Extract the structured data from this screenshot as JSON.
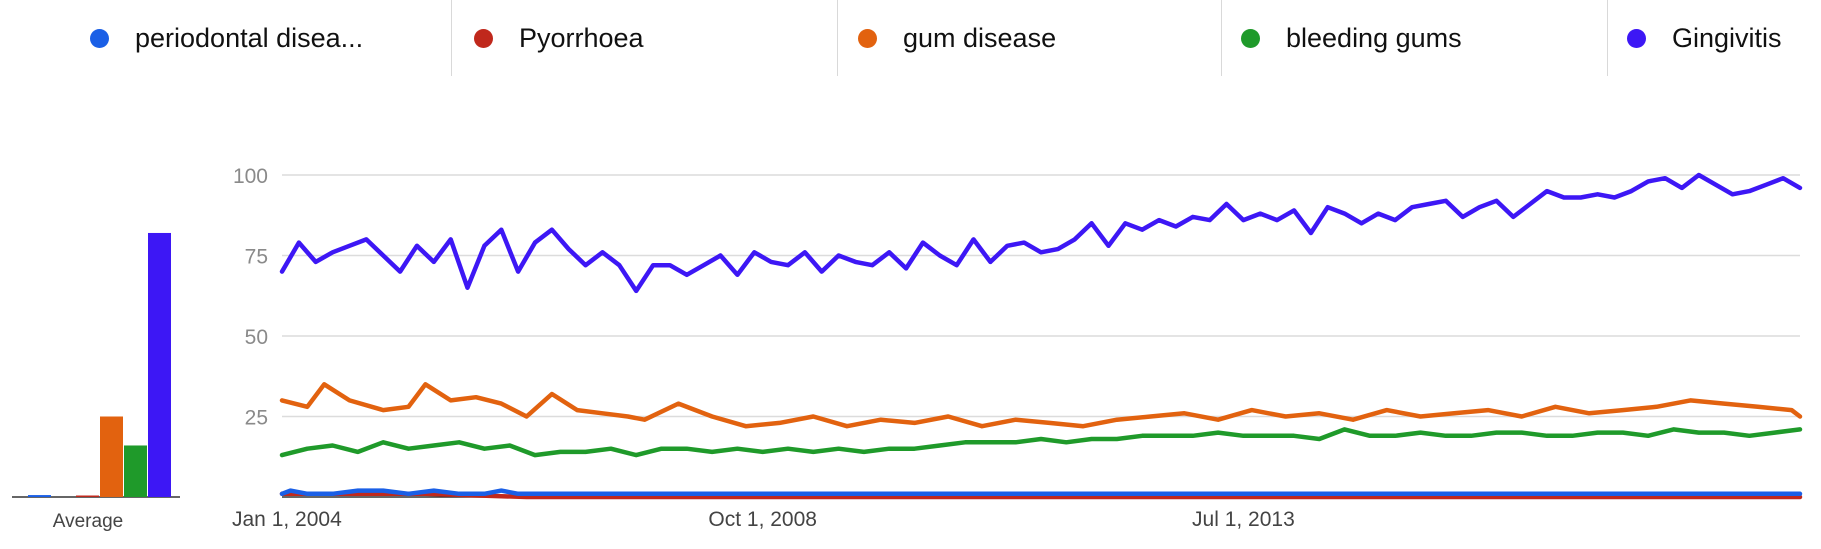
{
  "chart_data": {
    "type": "line",
    "series": [
      {
        "name": "periodontal disea...",
        "color": "#1a5fe6",
        "avg": 0.6,
        "x": [
          "2004-01",
          "2004-02",
          "2004-04",
          "2004-07",
          "2004-10",
          "2005-01",
          "2005-04",
          "2005-07",
          "2005-10",
          "2006-01",
          "2006-03",
          "2006-05",
          "2006-08",
          "2008-01",
          "2010-01",
          "2013-01",
          "2015-01",
          "2017-01",
          "2019-01"
        ],
        "y": [
          1,
          2,
          1,
          1,
          2,
          2,
          1,
          2,
          1,
          1,
          2,
          1,
          1,
          1,
          1,
          1,
          1,
          1,
          1
        ]
      },
      {
        "name": "Pyorrhoea",
        "color": "#c0281c",
        "avg": 0.4,
        "x": [
          "2004-01",
          "2005-06",
          "2006-06",
          "2008-01",
          "2011-01",
          "2014-01",
          "2019-01"
        ],
        "y": [
          1,
          1,
          0,
          0,
          0,
          0,
          0
        ]
      },
      {
        "name": "gum disease",
        "color": "#e2620f",
        "avg": 25,
        "x": [
          "2004-01",
          "2004-04",
          "2004-06",
          "2004-09",
          "2005-01",
          "2005-04",
          "2005-06",
          "2005-09",
          "2005-12",
          "2006-03",
          "2006-06",
          "2006-09",
          "2006-12",
          "2007-03",
          "2007-06",
          "2007-08",
          "2007-12",
          "2008-04",
          "2008-08",
          "2008-12",
          "2009-04",
          "2009-08",
          "2009-12",
          "2010-04",
          "2010-08",
          "2010-12",
          "2011-04",
          "2011-08",
          "2011-12",
          "2012-04",
          "2012-08",
          "2012-12",
          "2013-04",
          "2013-08",
          "2013-12",
          "2014-04",
          "2014-08",
          "2014-12",
          "2015-04",
          "2015-08",
          "2015-12",
          "2016-04",
          "2016-08",
          "2016-12",
          "2017-04",
          "2017-08",
          "2017-12",
          "2018-04",
          "2018-08",
          "2018-12",
          "2019-01"
        ],
        "y": [
          30,
          28,
          35,
          30,
          27,
          28,
          35,
          30,
          31,
          29,
          25,
          32,
          27,
          26,
          25,
          24,
          29,
          25,
          22,
          23,
          25,
          22,
          24,
          23,
          25,
          22,
          24,
          23,
          22,
          24,
          25,
          26,
          24,
          27,
          25,
          26,
          24,
          27,
          25,
          26,
          27,
          25,
          28,
          26,
          27,
          28,
          30,
          29,
          28,
          27,
          25
        ]
      },
      {
        "name": "bleeding gums",
        "color": "#1f9a2a",
        "avg": 16,
        "x": [
          "2004-01",
          "2004-04",
          "2004-07",
          "2004-10",
          "2005-01",
          "2005-04",
          "2005-07",
          "2005-10",
          "2006-01",
          "2006-04",
          "2006-07",
          "2006-10",
          "2007-01",
          "2007-04",
          "2007-07",
          "2007-10",
          "2008-01",
          "2008-04",
          "2008-07",
          "2008-10",
          "2009-01",
          "2009-04",
          "2009-07",
          "2009-10",
          "2010-01",
          "2010-04",
          "2010-07",
          "2010-10",
          "2011-01",
          "2011-04",
          "2011-07",
          "2011-10",
          "2012-01",
          "2012-04",
          "2012-07",
          "2012-10",
          "2013-01",
          "2013-04",
          "2013-07",
          "2013-10",
          "2014-01",
          "2014-04",
          "2014-07",
          "2014-10",
          "2015-01",
          "2015-04",
          "2015-07",
          "2015-10",
          "2016-01",
          "2016-04",
          "2016-07",
          "2016-10",
          "2017-01",
          "2017-04",
          "2017-07",
          "2017-10",
          "2018-01",
          "2018-04",
          "2018-07",
          "2018-10",
          "2019-01"
        ],
        "y": [
          13,
          15,
          16,
          14,
          17,
          15,
          16,
          17,
          15,
          16,
          13,
          14,
          14,
          15,
          13,
          15,
          15,
          14,
          15,
          14,
          15,
          14,
          15,
          14,
          15,
          15,
          16,
          17,
          17,
          17,
          18,
          17,
          18,
          18,
          19,
          19,
          19,
          20,
          19,
          19,
          19,
          18,
          21,
          19,
          19,
          20,
          19,
          19,
          20,
          20,
          19,
          19,
          20,
          20,
          19,
          21,
          20,
          20,
          19,
          20,
          21
        ]
      },
      {
        "name": "Gingivitis",
        "color": "#3d17f5",
        "avg": 82,
        "x": [
          "2004-01",
          "2004-03",
          "2004-05",
          "2004-07",
          "2004-09",
          "2004-11",
          "2005-01",
          "2005-03",
          "2005-05",
          "2005-07",
          "2005-09",
          "2005-11",
          "2006-01",
          "2006-03",
          "2006-05",
          "2006-07",
          "2006-09",
          "2006-11",
          "2007-01",
          "2007-03",
          "2007-05",
          "2007-07",
          "2007-09",
          "2007-11",
          "2008-01",
          "2008-03",
          "2008-05",
          "2008-07",
          "2008-09",
          "2008-11",
          "2009-01",
          "2009-03",
          "2009-05",
          "2009-07",
          "2009-09",
          "2009-11",
          "2010-01",
          "2010-03",
          "2010-05",
          "2010-07",
          "2010-09",
          "2010-11",
          "2011-01",
          "2011-03",
          "2011-05",
          "2011-07",
          "2011-09",
          "2011-11",
          "2012-01",
          "2012-03",
          "2012-05",
          "2012-07",
          "2012-09",
          "2012-11",
          "2013-01",
          "2013-03",
          "2013-05",
          "2013-07",
          "2013-09",
          "2013-11",
          "2014-01",
          "2014-03",
          "2014-05",
          "2014-07",
          "2014-09",
          "2014-11",
          "2015-01",
          "2015-03",
          "2015-05",
          "2015-07",
          "2015-09",
          "2015-11",
          "2016-01",
          "2016-03",
          "2016-05",
          "2016-07",
          "2016-09",
          "2016-11",
          "2017-01",
          "2017-03",
          "2017-05",
          "2017-07",
          "2017-09",
          "2017-11",
          "2018-01",
          "2018-03",
          "2018-05",
          "2018-07",
          "2018-09",
          "2018-11",
          "2019-01"
        ],
        "y": [
          70,
          79,
          73,
          76,
          78,
          80,
          75,
          70,
          78,
          73,
          80,
          65,
          78,
          83,
          70,
          79,
          83,
          77,
          72,
          76,
          72,
          64,
          72,
          72,
          69,
          72,
          75,
          69,
          76,
          73,
          72,
          76,
          70,
          75,
          73,
          72,
          76,
          71,
          79,
          75,
          72,
          80,
          73,
          78,
          79,
          76,
          77,
          80,
          85,
          78,
          85,
          83,
          86,
          84,
          87,
          86,
          91,
          86,
          88,
          86,
          89,
          82,
          90,
          88,
          85,
          88,
          86,
          90,
          91,
          92,
          87,
          90,
          92,
          87,
          91,
          95,
          93,
          93,
          94,
          93,
          95,
          98,
          99,
          96,
          100,
          97,
          94,
          95,
          97,
          99,
          96
        ]
      }
    ],
    "ylim": [
      0,
      100
    ],
    "yticks": [
      "25",
      "50",
      "75",
      "100"
    ],
    "xlim": [
      "2004-01",
      "2019-01"
    ],
    "xticks": [
      {
        "at": "2004-01",
        "label": "Jan 1, 2004"
      },
      {
        "at": "2008-10",
        "label": "Oct 1, 2008"
      },
      {
        "at": "2013-07",
        "label": "Jul 1, 2013"
      }
    ],
    "inset": {
      "type": "bar",
      "label": "Average"
    },
    "grid": true,
    "legend_position": "top"
  }
}
